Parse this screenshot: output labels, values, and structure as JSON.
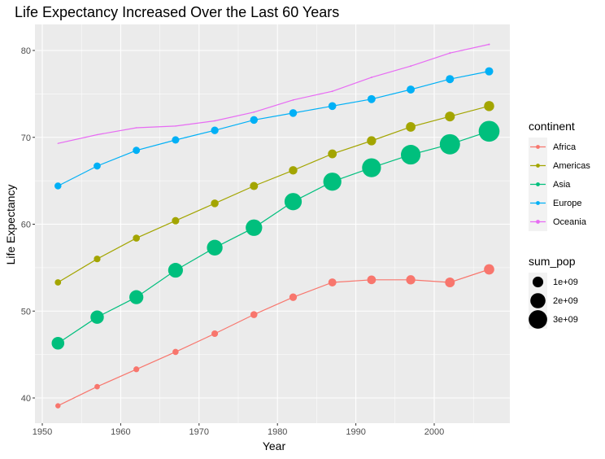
{
  "chart_data": {
    "type": "line",
    "title": "Life Expectancy Increased Over the Last 60 Years",
    "xlabel": "Year",
    "ylabel": "Life Expectancy",
    "xlim": [
      1950,
      2007
    ],
    "ylim": [
      40,
      80
    ],
    "x_ticks": [
      1950,
      1960,
      1970,
      1980,
      1990,
      2000
    ],
    "y_ticks": [
      40,
      50,
      60,
      70,
      80
    ],
    "grid": true,
    "x": [
      1952,
      1957,
      1962,
      1967,
      1972,
      1977,
      1982,
      1987,
      1992,
      1997,
      2002,
      2007
    ],
    "series": [
      {
        "name": "Africa",
        "color": "#F8766D",
        "values": [
          39.1,
          41.3,
          43.3,
          45.3,
          47.4,
          49.6,
          51.6,
          53.3,
          53.6,
          53.6,
          53.3,
          54.8
        ],
        "sum_pop": [
          0.24,
          0.26,
          0.3,
          0.33,
          0.38,
          0.43,
          0.5,
          0.57,
          0.66,
          0.74,
          0.83,
          0.93
        ]
      },
      {
        "name": "Americas",
        "color": "#A3A500",
        "values": [
          53.3,
          56.0,
          58.4,
          60.4,
          62.4,
          64.4,
          66.2,
          68.1,
          69.6,
          71.2,
          72.4,
          73.6
        ],
        "sum_pop": [
          0.35,
          0.39,
          0.43,
          0.48,
          0.53,
          0.58,
          0.63,
          0.68,
          0.74,
          0.8,
          0.85,
          0.9
        ]
      },
      {
        "name": "Asia",
        "color": "#00BF7D",
        "values": [
          46.3,
          49.3,
          51.6,
          54.7,
          57.3,
          59.6,
          62.6,
          64.9,
          66.5,
          68.0,
          69.2,
          70.7
        ],
        "sum_pop": [
          1.4,
          1.56,
          1.72,
          1.91,
          2.15,
          2.38,
          2.61,
          2.87,
          3.13,
          3.38,
          3.6,
          3.81
        ]
      },
      {
        "name": "Europe",
        "color": "#00B0F6",
        "values": [
          64.4,
          66.7,
          68.5,
          69.7,
          70.8,
          72.0,
          72.8,
          73.6,
          74.4,
          75.5,
          76.7,
          77.6
        ],
        "sum_pop": [
          0.42,
          0.44,
          0.46,
          0.48,
          0.5,
          0.52,
          0.53,
          0.54,
          0.56,
          0.57,
          0.58,
          0.59
        ]
      },
      {
        "name": "Oceania",
        "color": "#E76BF3",
        "values": [
          69.3,
          70.3,
          71.1,
          71.3,
          71.9,
          72.9,
          74.3,
          75.3,
          76.9,
          78.2,
          79.7,
          80.7
        ],
        "sum_pop": [
          0.01,
          0.011,
          0.012,
          0.014,
          0.016,
          0.017,
          0.018,
          0.02,
          0.021,
          0.022,
          0.024,
          0.025
        ]
      }
    ],
    "legend": {
      "color_title": "continent",
      "size_title": "sum_pop",
      "size_entries": [
        {
          "label": "1e+09",
          "value": 1.0
        },
        {
          "label": "2e+09",
          "value": 2.0
        },
        {
          "label": "3e+09",
          "value": 3.0
        }
      ],
      "placement": "right"
    }
  }
}
